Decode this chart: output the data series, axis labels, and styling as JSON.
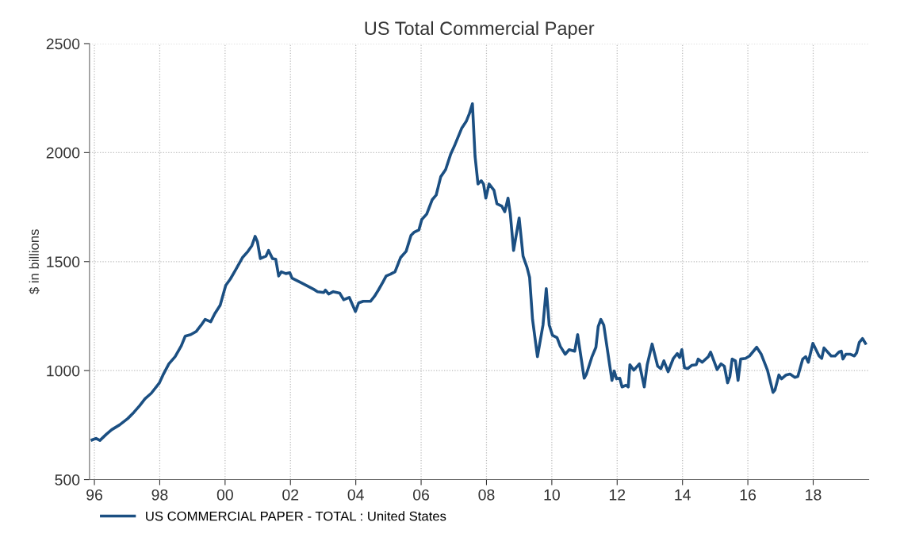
{
  "chart_data": {
    "type": "line",
    "title": "US Total Commercial Paper",
    "ylabel": "$ in billions",
    "xlim": [
      1995.85,
      2019.7
    ],
    "ylim": [
      500,
      2500
    ],
    "xticks": [
      {
        "value": 1996,
        "label": "96"
      },
      {
        "value": 1998,
        "label": "98"
      },
      {
        "value": 2000,
        "label": "00"
      },
      {
        "value": 2002,
        "label": "02"
      },
      {
        "value": 2004,
        "label": "04"
      },
      {
        "value": 2006,
        "label": "06"
      },
      {
        "value": 2008,
        "label": "08"
      },
      {
        "value": 2010,
        "label": "10"
      },
      {
        "value": 2012,
        "label": "12"
      },
      {
        "value": 2014,
        "label": "14"
      },
      {
        "value": 2016,
        "label": "16"
      },
      {
        "value": 2018,
        "label": "18"
      }
    ],
    "yticks": [
      500,
      1000,
      1500,
      2000,
      2500
    ],
    "grid": true,
    "legend": "bottom",
    "marker": "none",
    "line_style": "solid",
    "series": [
      {
        "name": "US COMMERCIAL PAPER - TOTAL : United States",
        "color": "#1b4f82",
        "x": [
          1995.93,
          1996.05,
          1996.17,
          1996.36,
          1996.53,
          1996.77,
          1997.02,
          1997.21,
          1997.38,
          1997.55,
          1997.74,
          1997.99,
          1998.1,
          1998.28,
          1998.47,
          1998.66,
          1998.78,
          1998.95,
          1999.12,
          1999.27,
          1999.39,
          1999.56,
          1999.68,
          1999.85,
          2000.02,
          2000.16,
          2000.33,
          2000.53,
          2000.7,
          2000.82,
          2000.92,
          2000.99,
          2001.08,
          2001.25,
          2001.33,
          2001.45,
          2001.55,
          2001.64,
          2001.72,
          2001.86,
          2001.98,
          2002.05,
          2002.34,
          2002.71,
          2002.83,
          2003.02,
          2003.07,
          2003.17,
          2003.31,
          2003.51,
          2003.63,
          2003.8,
          2003.99,
          2004.09,
          2004.23,
          2004.45,
          2004.57,
          2004.69,
          2004.84,
          2004.93,
          2005.06,
          2005.2,
          2005.37,
          2005.54,
          2005.69,
          2005.78,
          2005.93,
          2006.02,
          2006.17,
          2006.34,
          2006.46,
          2006.6,
          2006.75,
          2006.9,
          2007.04,
          2007.24,
          2007.38,
          2007.48,
          2007.57,
          2007.65,
          2007.74,
          2007.84,
          2007.91,
          2007.98,
          2008.08,
          2008.23,
          2008.32,
          2008.47,
          2008.56,
          2008.66,
          2008.73,
          2008.83,
          2009.0,
          2009.12,
          2009.24,
          2009.32,
          2009.41,
          2009.56,
          2009.73,
          2009.83,
          2009.92,
          2010.02,
          2010.16,
          2010.26,
          2010.41,
          2010.53,
          2010.7,
          2010.79,
          2010.99,
          2011.06,
          2011.23,
          2011.35,
          2011.42,
          2011.5,
          2011.59,
          2011.84,
          2011.91,
          2011.98,
          2012.08,
          2012.15,
          2012.27,
          2012.34,
          2012.39,
          2012.51,
          2012.68,
          2012.83,
          2012.92,
          2013.07,
          2013.24,
          2013.34,
          2013.43,
          2013.56,
          2013.72,
          2013.84,
          2013.91,
          2013.98,
          2014.06,
          2014.16,
          2014.28,
          2014.42,
          2014.48,
          2014.6,
          2014.79,
          2014.86,
          2015.06,
          2015.18,
          2015.28,
          2015.38,
          2015.45,
          2015.52,
          2015.62,
          2015.7,
          2015.78,
          2015.93,
          2016.05,
          2016.27,
          2016.41,
          2016.6,
          2016.77,
          2016.83,
          2016.95,
          2017.03,
          2017.17,
          2017.29,
          2017.44,
          2017.53,
          2017.68,
          2017.77,
          2017.85,
          2017.99,
          2018.18,
          2018.26,
          2018.33,
          2018.55,
          2018.67,
          2018.79,
          2018.86,
          2018.91,
          2019.0,
          2019.14,
          2019.26,
          2019.33,
          2019.41,
          2019.51,
          2019.6
        ],
        "values": [
          682,
          689,
          680,
          707,
          729,
          751,
          780,
          809,
          838,
          871,
          896,
          944,
          980,
          1031,
          1064,
          1114,
          1158,
          1165,
          1180,
          1209,
          1235,
          1224,
          1260,
          1300,
          1391,
          1420,
          1464,
          1518,
          1547,
          1573,
          1616,
          1591,
          1514,
          1525,
          1551,
          1514,
          1511,
          1434,
          1453,
          1445,
          1449,
          1424,
          1402,
          1373,
          1362,
          1358,
          1369,
          1351,
          1362,
          1355,
          1325,
          1336,
          1271,
          1311,
          1318,
          1318,
          1340,
          1369,
          1409,
          1434,
          1442,
          1453,
          1518,
          1547,
          1620,
          1634,
          1645,
          1693,
          1718,
          1784,
          1805,
          1889,
          1922,
          1991,
          2038,
          2111,
          2143,
          2180,
          2224,
          1984,
          1856,
          1871,
          1856,
          1791,
          1856,
          1827,
          1765,
          1754,
          1729,
          1791,
          1718,
          1551,
          1700,
          1525,
          1474,
          1427,
          1235,
          1064,
          1209,
          1376,
          1209,
          1162,
          1151,
          1111,
          1075,
          1096,
          1089,
          1165,
          965,
          984,
          1064,
          1107,
          1202,
          1235,
          1209,
          955,
          998,
          962,
          965,
          925,
          933,
          925,
          1027,
          1002,
          1031,
          925,
          1027,
          1122,
          1020,
          1009,
          1045,
          995,
          1056,
          1078,
          1060,
          1096,
          1013,
          1009,
          1024,
          1027,
          1053,
          1038,
          1064,
          1085,
          1005,
          1031,
          1020,
          944,
          973,
          1053,
          1045,
          955,
          1053,
          1056,
          1067,
          1107,
          1075,
          1002,
          900,
          911,
          980,
          962,
          980,
          984,
          969,
          973,
          1053,
          1064,
          1038,
          1125,
          1067,
          1056,
          1104,
          1067,
          1067,
          1085,
          1089,
          1053,
          1075,
          1075,
          1067,
          1082,
          1129,
          1147,
          1125
        ]
      }
    ]
  }
}
